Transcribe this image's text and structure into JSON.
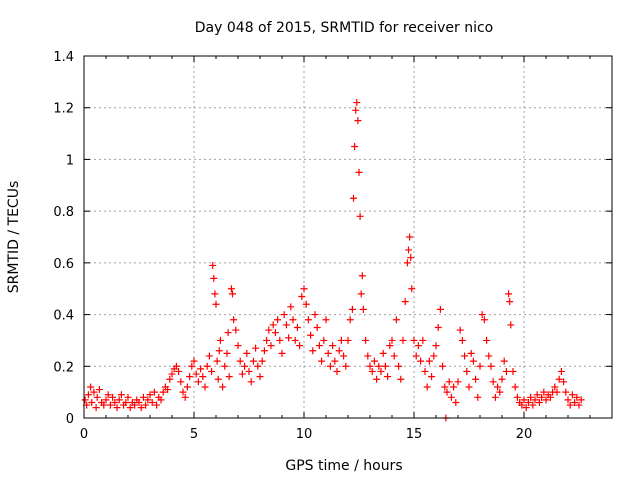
{
  "chart_data": {
    "type": "scatter",
    "title": "Day 048 of 2015, SRMTID for receiver nico",
    "xlabel": "GPS time / hours",
    "ylabel": "SRMTID / TECUs",
    "xlim": [
      0,
      24
    ],
    "ylim": [
      0,
      1.4
    ],
    "xticks": [
      0,
      5,
      10,
      15,
      20
    ],
    "xtick_labels": [
      "0",
      "5",
      "10",
      "15",
      "20"
    ],
    "yticks": [
      0,
      0.2,
      0.4,
      0.6,
      0.8,
      1.0,
      1.2,
      1.4
    ],
    "ytick_labels": [
      "0",
      "0.2",
      "0.4",
      "0.6",
      "0.8",
      "1",
      "1.2",
      "1.4"
    ],
    "grid": true,
    "marker": "plus",
    "series": [
      {
        "name": "SRMTID",
        "color": "#ff0000",
        "points": [
          [
            0.05,
            0.07
          ],
          [
            0.12,
            0.05
          ],
          [
            0.2,
            0.09
          ],
          [
            0.3,
            0.12
          ],
          [
            0.35,
            0.06
          ],
          [
            0.45,
            0.1
          ],
          [
            0.55,
            0.04
          ],
          [
            0.6,
            0.08
          ],
          [
            0.7,
            0.11
          ],
          [
            0.8,
            0.06
          ],
          [
            0.9,
            0.05
          ],
          [
            1.0,
            0.07
          ],
          [
            1.1,
            0.09
          ],
          [
            1.2,
            0.05
          ],
          [
            1.3,
            0.08
          ],
          [
            1.4,
            0.06
          ],
          [
            1.5,
            0.04
          ],
          [
            1.6,
            0.07
          ],
          [
            1.7,
            0.09
          ],
          [
            1.8,
            0.05
          ],
          [
            1.9,
            0.06
          ],
          [
            2.0,
            0.08
          ],
          [
            2.1,
            0.04
          ],
          [
            2.2,
            0.06
          ],
          [
            2.3,
            0.05
          ],
          [
            2.4,
            0.07
          ],
          [
            2.5,
            0.06
          ],
          [
            2.6,
            0.04
          ],
          [
            2.7,
            0.08
          ],
          [
            2.8,
            0.05
          ],
          [
            2.9,
            0.07
          ],
          [
            3.0,
            0.09
          ],
          [
            3.1,
            0.06
          ],
          [
            3.2,
            0.1
          ],
          [
            3.3,
            0.05
          ],
          [
            3.4,
            0.08
          ],
          [
            3.5,
            0.07
          ],
          [
            3.6,
            0.1
          ],
          [
            3.7,
            0.12
          ],
          [
            3.8,
            0.11
          ],
          [
            3.9,
            0.15
          ],
          [
            4.0,
            0.17
          ],
          [
            4.1,
            0.19
          ],
          [
            4.2,
            0.2
          ],
          [
            4.3,
            0.18
          ],
          [
            4.4,
            0.14
          ],
          [
            4.5,
            0.1
          ],
          [
            4.6,
            0.08
          ],
          [
            4.7,
            0.12
          ],
          [
            4.8,
            0.16
          ],
          [
            4.9,
            0.2
          ],
          [
            5.0,
            0.22
          ],
          [
            5.1,
            0.17
          ],
          [
            5.2,
            0.14
          ],
          [
            5.3,
            0.19
          ],
          [
            5.4,
            0.16
          ],
          [
            5.5,
            0.12
          ],
          [
            5.6,
            0.2
          ],
          [
            5.7,
            0.24
          ],
          [
            5.8,
            0.18
          ],
          [
            5.85,
            0.59
          ],
          [
            5.9,
            0.54
          ],
          [
            5.95,
            0.48
          ],
          [
            6.0,
            0.44
          ],
          [
            6.05,
            0.22
          ],
          [
            6.1,
            0.15
          ],
          [
            6.15,
            0.26
          ],
          [
            6.2,
            0.3
          ],
          [
            6.3,
            0.12
          ],
          [
            6.4,
            0.2
          ],
          [
            6.5,
            0.25
          ],
          [
            6.55,
            0.33
          ],
          [
            6.6,
            0.16
          ],
          [
            6.7,
            0.5
          ],
          [
            6.75,
            0.48
          ],
          [
            6.8,
            0.38
          ],
          [
            6.9,
            0.34
          ],
          [
            7.0,
            0.28
          ],
          [
            7.1,
            0.22
          ],
          [
            7.2,
            0.17
          ],
          [
            7.3,
            0.2
          ],
          [
            7.4,
            0.25
          ],
          [
            7.5,
            0.18
          ],
          [
            7.6,
            0.14
          ],
          [
            7.7,
            0.22
          ],
          [
            7.8,
            0.27
          ],
          [
            7.9,
            0.2
          ],
          [
            8.0,
            0.16
          ],
          [
            8.1,
            0.22
          ],
          [
            8.2,
            0.26
          ],
          [
            8.3,
            0.3
          ],
          [
            8.4,
            0.34
          ],
          [
            8.5,
            0.28
          ],
          [
            8.6,
            0.36
          ],
          [
            8.7,
            0.33
          ],
          [
            8.8,
            0.38
          ],
          [
            8.9,
            0.3
          ],
          [
            9.0,
            0.25
          ],
          [
            9.1,
            0.4
          ],
          [
            9.2,
            0.36
          ],
          [
            9.3,
            0.31
          ],
          [
            9.4,
            0.43
          ],
          [
            9.5,
            0.38
          ],
          [
            9.6,
            0.3
          ],
          [
            9.7,
            0.35
          ],
          [
            9.8,
            0.28
          ],
          [
            9.9,
            0.47
          ],
          [
            10.0,
            0.5
          ],
          [
            10.1,
            0.44
          ],
          [
            10.2,
            0.38
          ],
          [
            10.3,
            0.32
          ],
          [
            10.4,
            0.26
          ],
          [
            10.5,
            0.4
          ],
          [
            10.6,
            0.35
          ],
          [
            10.7,
            0.28
          ],
          [
            10.8,
            0.22
          ],
          [
            10.9,
            0.3
          ],
          [
            11.0,
            0.38
          ],
          [
            11.1,
            0.25
          ],
          [
            11.2,
            0.2
          ],
          [
            11.3,
            0.28
          ],
          [
            11.4,
            0.22
          ],
          [
            11.5,
            0.18
          ],
          [
            11.6,
            0.26
          ],
          [
            11.7,
            0.3
          ],
          [
            11.8,
            0.24
          ],
          [
            11.9,
            0.2
          ],
          [
            12.0,
            0.3
          ],
          [
            12.1,
            0.38
          ],
          [
            12.2,
            0.42
          ],
          [
            12.25,
            0.85
          ],
          [
            12.3,
            1.05
          ],
          [
            12.35,
            1.19
          ],
          [
            12.4,
            1.22
          ],
          [
            12.45,
            1.15
          ],
          [
            12.5,
            0.95
          ],
          [
            12.55,
            0.78
          ],
          [
            12.6,
            0.48
          ],
          [
            12.65,
            0.55
          ],
          [
            12.7,
            0.42
          ],
          [
            12.8,
            0.3
          ],
          [
            12.9,
            0.24
          ],
          [
            13.0,
            0.2
          ],
          [
            13.1,
            0.18
          ],
          [
            13.2,
            0.22
          ],
          [
            13.3,
            0.15
          ],
          [
            13.4,
            0.2
          ],
          [
            13.5,
            0.18
          ],
          [
            13.6,
            0.25
          ],
          [
            13.7,
            0.2
          ],
          [
            13.8,
            0.16
          ],
          [
            13.9,
            0.28
          ],
          [
            14.0,
            0.3
          ],
          [
            14.1,
            0.24
          ],
          [
            14.2,
            0.38
          ],
          [
            14.3,
            0.2
          ],
          [
            14.4,
            0.15
          ],
          [
            14.5,
            0.3
          ],
          [
            14.6,
            0.45
          ],
          [
            14.7,
            0.6
          ],
          [
            14.75,
            0.65
          ],
          [
            14.8,
            0.7
          ],
          [
            14.85,
            0.62
          ],
          [
            14.9,
            0.5
          ],
          [
            15.0,
            0.3
          ],
          [
            15.1,
            0.24
          ],
          [
            15.2,
            0.28
          ],
          [
            15.3,
            0.22
          ],
          [
            15.4,
            0.3
          ],
          [
            15.5,
            0.18
          ],
          [
            15.6,
            0.12
          ],
          [
            15.7,
            0.22
          ],
          [
            15.8,
            0.16
          ],
          [
            15.9,
            0.24
          ],
          [
            16.0,
            0.28
          ],
          [
            16.1,
            0.35
          ],
          [
            16.2,
            0.42
          ],
          [
            16.3,
            0.2
          ],
          [
            16.4,
            0.12
          ],
          [
            16.45,
            0.0
          ],
          [
            16.5,
            0.1
          ],
          [
            16.6,
            0.14
          ],
          [
            16.7,
            0.08
          ],
          [
            16.8,
            0.12
          ],
          [
            16.9,
            0.06
          ],
          [
            17.0,
            0.14
          ],
          [
            17.1,
            0.34
          ],
          [
            17.2,
            0.3
          ],
          [
            17.3,
            0.24
          ],
          [
            17.4,
            0.18
          ],
          [
            17.5,
            0.12
          ],
          [
            17.6,
            0.25
          ],
          [
            17.7,
            0.22
          ],
          [
            17.8,
            0.15
          ],
          [
            17.9,
            0.08
          ],
          [
            18.0,
            0.2
          ],
          [
            18.1,
            0.4
          ],
          [
            18.2,
            0.38
          ],
          [
            18.3,
            0.3
          ],
          [
            18.4,
            0.24
          ],
          [
            18.5,
            0.2
          ],
          [
            18.6,
            0.14
          ],
          [
            18.7,
            0.08
          ],
          [
            18.8,
            0.12
          ],
          [
            18.9,
            0.1
          ],
          [
            19.0,
            0.15
          ],
          [
            19.1,
            0.22
          ],
          [
            19.2,
            0.18
          ],
          [
            19.3,
            0.48
          ],
          [
            19.35,
            0.45
          ],
          [
            19.4,
            0.36
          ],
          [
            19.5,
            0.18
          ],
          [
            19.6,
            0.12
          ],
          [
            19.7,
            0.08
          ],
          [
            19.8,
            0.06
          ],
          [
            19.9,
            0.05
          ],
          [
            20.0,
            0.07
          ],
          [
            20.1,
            0.04
          ],
          [
            20.2,
            0.06
          ],
          [
            20.3,
            0.08
          ],
          [
            20.4,
            0.05
          ],
          [
            20.5,
            0.07
          ],
          [
            20.6,
            0.09
          ],
          [
            20.7,
            0.06
          ],
          [
            20.8,
            0.08
          ],
          [
            20.9,
            0.1
          ],
          [
            21.0,
            0.07
          ],
          [
            21.1,
            0.09
          ],
          [
            21.2,
            0.08
          ],
          [
            21.3,
            0.1
          ],
          [
            21.4,
            0.12
          ],
          [
            21.5,
            0.1
          ],
          [
            21.6,
            0.15
          ],
          [
            21.7,
            0.18
          ],
          [
            21.8,
            0.14
          ],
          [
            21.9,
            0.1
          ],
          [
            22.0,
            0.07
          ],
          [
            22.1,
            0.05
          ],
          [
            22.2,
            0.09
          ],
          [
            22.3,
            0.06
          ],
          [
            22.4,
            0.08
          ],
          [
            22.5,
            0.05
          ],
          [
            22.6,
            0.07
          ]
        ]
      }
    ]
  }
}
